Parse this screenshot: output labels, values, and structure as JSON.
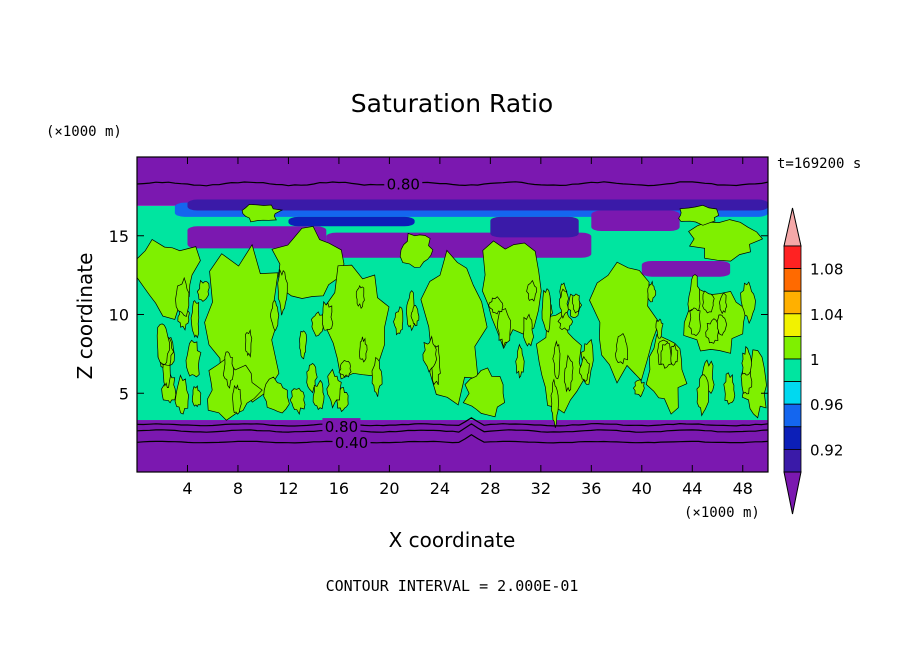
{
  "chart_data": {
    "type": "heatmap",
    "title": "Saturation Ratio",
    "xlabel": "X coordinate",
    "ylabel": "Z coordinate",
    "x_unit": "(×1000 m)",
    "y_unit": "(×1000 m)",
    "time_label": "t=169200 s",
    "footer": "CONTOUR INTERVAL = 2.000E-01",
    "xlim": [
      0,
      50
    ],
    "ylim": [
      0,
      20
    ],
    "x_ticks": [
      4,
      8,
      12,
      16,
      20,
      24,
      28,
      32,
      36,
      40,
      44,
      48
    ],
    "y_ticks": [
      5,
      10,
      15
    ],
    "colorbar": {
      "levels": [
        0.92,
        0.96,
        1,
        1.04,
        1.08
      ],
      "level_labels": [
        "0.92",
        "0.96",
        "1",
        "1.04",
        "1.08"
      ],
      "colors": [
        "#7b18b0",
        "#3a1aa8",
        "#0c1fb8",
        "#1466ef",
        "#00d9f0",
        "#00e5a0",
        "#7ff000",
        "#f2f200",
        "#ffb000",
        "#ff6a00",
        "#ff2222",
        "#f5a8a8"
      ]
    },
    "contour_labels": [
      {
        "text": "0.80",
        "x": 21.1,
        "z": 18.25
      },
      {
        "text": "0.80",
        "x": 16.2,
        "z": 2.85
      },
      {
        "text": "0.40",
        "x": 17.0,
        "z": 1.85
      }
    ],
    "zones": {
      "top_band": {
        "zmin": 16.9,
        "zmax": 20,
        "level": "below 0.92"
      },
      "bottom_band": {
        "zmin": 0,
        "zmax": 3.3,
        "level": "below 0.92"
      },
      "middle": {
        "zmin": 3.3,
        "zmax": 16.9,
        "dominant": "0.96-1",
        "patches": "1-1.04"
      }
    }
  }
}
